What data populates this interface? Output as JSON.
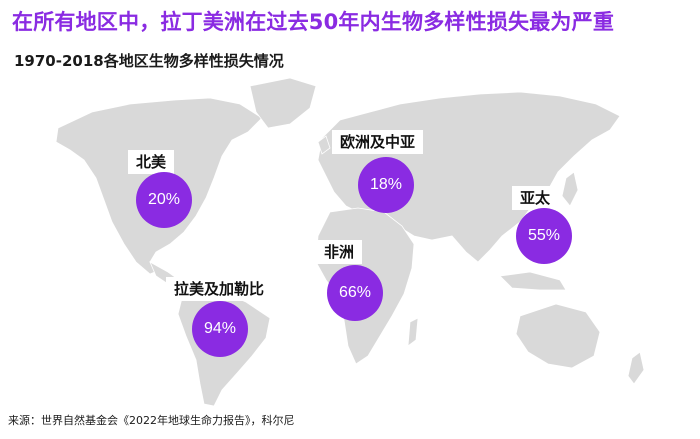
{
  "title": "在所有地区中，拉丁美洲在过去50年内生物多样性损失最为严重",
  "subtitle": "1970-2018各地区生物多样性损失情况",
  "source": "来源：世界自然基金会《2022年地球生命力报告》，科尔尼",
  "accent_color": "#8a2be2",
  "land_color": "#d9d9d9",
  "regions": [
    {
      "name": "北美",
      "value": "20%"
    },
    {
      "name": "欧洲及中亚",
      "value": "18%"
    },
    {
      "name": "亚太",
      "value": "55%"
    },
    {
      "name": "非洲",
      "value": "66%"
    },
    {
      "name": "拉美及加勒比",
      "value": "94%"
    }
  ]
}
